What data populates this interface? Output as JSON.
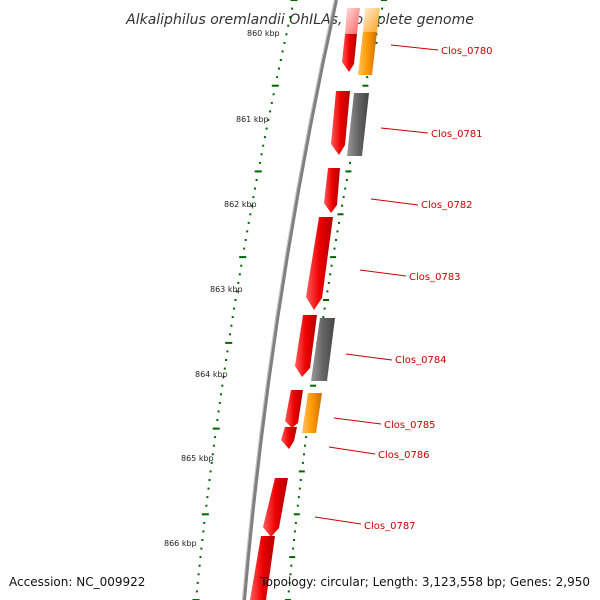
{
  "title": "Alkaliphilus oremlandii OhILAs, complete genome",
  "footer": {
    "accession": "Accession: NC_009922",
    "topology": "Topology: circular; Length: 3,123,558 bp; Genes: 2,950"
  },
  "ticks": [
    {
      "label": "860 kbp"
    },
    {
      "label": "861 kbp"
    },
    {
      "label": "862 kbp"
    },
    {
      "label": "863 kbp"
    },
    {
      "label": "864 kbp"
    },
    {
      "label": "865 kbp"
    },
    {
      "label": "866 kbp"
    }
  ],
  "genes": [
    {
      "label": "Clos_0780"
    },
    {
      "label": "Clos_0781"
    },
    {
      "label": "Clos_0782"
    },
    {
      "label": "Clos_0783"
    },
    {
      "label": "Clos_0784"
    },
    {
      "label": "Clos_0785"
    },
    {
      "label": "Clos_0786"
    },
    {
      "label": "Clos_0787"
    }
  ],
  "colors": {
    "backbone": "#808080",
    "cds": "#ee0000",
    "cds_light": "#ffb0b0",
    "orange": "#ff9900",
    "gray": "#666666",
    "ticks": "#006600",
    "label": "#cc0000"
  }
}
